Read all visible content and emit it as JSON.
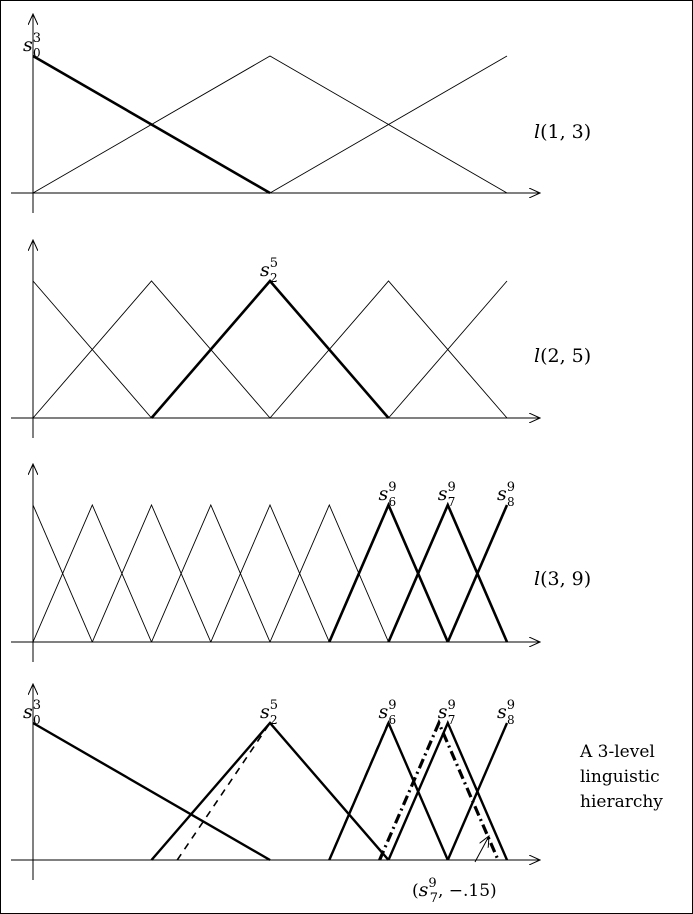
{
  "panels": [
    {
      "label": {
        "pre": "l",
        "args": "(1, 3)"
      },
      "highlighted": [
        0
      ],
      "point_labels": [
        {
          "base": "s",
          "sub": "0",
          "sup": "3",
          "index": 0
        }
      ],
      "dashed": []
    },
    {
      "label": {
        "pre": "l",
        "args": "(2, 5)"
      },
      "highlighted": [
        2
      ],
      "point_labels": [
        {
          "base": "s",
          "sub": "2",
          "sup": "5",
          "index": 2
        }
      ],
      "dashed": []
    },
    {
      "label": {
        "pre": "l",
        "args": "(3, 9)"
      },
      "highlighted": [
        6,
        7,
        8
      ],
      "point_labels": [
        {
          "base": "s",
          "sub": "6",
          "sup": "9",
          "index": 6
        },
        {
          "base": "s",
          "sub": "7",
          "sup": "9",
          "index": 7
        },
        {
          "base": "s",
          "sub": "8",
          "sup": "9",
          "index": 8
        }
      ],
      "dashed": []
    },
    {
      "caption_lines": [
        "A 3-level",
        "linguistic",
        "hierarchy"
      ],
      "sets": [
        {
          "granularity": 3,
          "index": 0,
          "label": {
            "base": "s",
            "sub": "0",
            "sup": "3"
          }
        },
        {
          "granularity": 5,
          "index": 2,
          "label": {
            "base": "s",
            "sub": "2",
            "sup": "5"
          }
        },
        {
          "granularity": 9,
          "index": 6,
          "label": {
            "base": "s",
            "sub": "6",
            "sup": "9"
          }
        },
        {
          "granularity": 9,
          "index": 7,
          "label": {
            "base": "s",
            "sub": "7",
            "sup": "9"
          }
        },
        {
          "granularity": 9,
          "index": 8,
          "label": {
            "base": "s",
            "sub": "8",
            "sup": "9"
          }
        }
      ],
      "translated": {
        "index": 7,
        "alpha": -0.15
      },
      "annotation": {
        "open": "(",
        "base": "s",
        "sub": "7",
        "sup": "9",
        "rest": ", −.15)"
      }
    }
  ]
}
